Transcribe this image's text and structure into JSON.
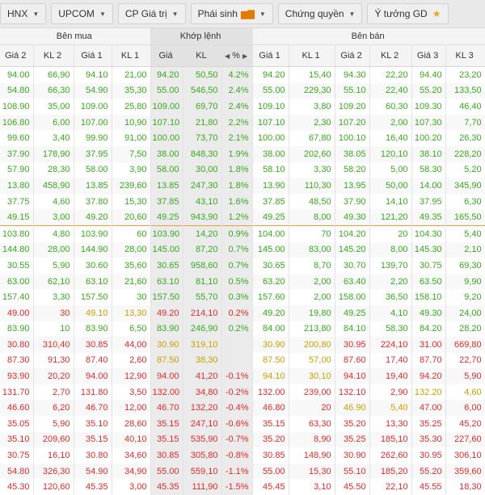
{
  "tabs": [
    {
      "label": "HNX",
      "caret": true
    },
    {
      "label": "UPCOM",
      "caret": true
    },
    {
      "label": "CP Giá trị",
      "caret": true
    },
    {
      "label": "Phái sinh",
      "caret": true,
      "chart_icon": true
    },
    {
      "label": "Chứng quyền",
      "caret": true
    },
    {
      "label": "Ý tưởng GD",
      "star": true
    }
  ],
  "groups": {
    "buy": "Bên mua",
    "match": "Khớp lệnh",
    "sell": "Bên bán"
  },
  "columns": [
    "Giá 2",
    "KL 2",
    "Giá 1",
    "KL 1",
    "Giá",
    "KL",
    "%",
    "Giá 1",
    "KL 1",
    "Giá 2",
    "KL 2",
    "Giá 3",
    "KL 3"
  ],
  "colors": {
    "green": "#3aa81f",
    "red": "#e02a2a",
    "yellow": "#c9a000",
    "grey": "#222222"
  },
  "rows": [
    {
      "c": "g",
      "v": [
        "94.00",
        "66,90",
        "94.10",
        "21,00",
        "94.20",
        "50,50",
        "4.2%",
        "94.20",
        "15,40",
        "94.30",
        "22,20",
        "94.40",
        "23,20"
      ]
    },
    {
      "c": "g",
      "v": [
        "54.80",
        "66,30",
        "54.90",
        "35,30",
        "55.00",
        "546,50",
        "2.4%",
        "55.00",
        "229,30",
        "55.10",
        "22,40",
        "55.20",
        "133,50"
      ]
    },
    {
      "c": "g",
      "v": [
        "108.90",
        "35,00",
        "109.00",
        "25,80",
        "109.00",
        "69,70",
        "2.4%",
        "109.10",
        "3,80",
        "109.20",
        "60,30",
        "109.30",
        "46,40"
      ]
    },
    {
      "c": "g",
      "v": [
        "106.80",
        "6,00",
        "107.00",
        "10,90",
        "107.10",
        "21,80",
        "2.2%",
        "107.10",
        "2,30",
        "107.20",
        "2,00",
        "107.30",
        "7,70"
      ]
    },
    {
      "c": "g",
      "v": [
        "99.60",
        "3,40",
        "99.90",
        "91,00",
        "100.00",
        "73,70",
        "2.1%",
        "100.00",
        "67,80",
        "100.10",
        "16,40",
        "100.20",
        "26,30"
      ]
    },
    {
      "c": "g",
      "v": [
        "37.90",
        "178,90",
        "37.95",
        "7,50",
        "38.00",
        "848,30",
        "1.9%",
        "38.00",
        "202,60",
        "38.05",
        "120,10",
        "38.10",
        "228,20"
      ]
    },
    {
      "c": "g",
      "v": [
        "57.90",
        "28,30",
        "58.00",
        "3,90",
        "58.00",
        "30,00",
        "1.8%",
        "58.10",
        "3,30",
        "58.20",
        "5,00",
        "58.30",
        "5,20"
      ]
    },
    {
      "c": "g",
      "v": [
        "13.80",
        "458,90",
        "13.85",
        "239,60",
        "13.85",
        "247,30",
        "1.8%",
        "13.90",
        "110,30",
        "13.95",
        "50,00",
        "14.00",
        "345,90"
      ]
    },
    {
      "c": "g",
      "v": [
        "37.75",
        "4,60",
        "37.80",
        "15,30",
        "37.85",
        "43,10",
        "1.6%",
        "37.85",
        "48,50",
        "37.90",
        "14,10",
        "37.95",
        "6,30"
      ]
    },
    {
      "c": "g",
      "v": [
        "49.15",
        "3,00",
        "49.20",
        "20,60",
        "49.25",
        "943,90",
        "1.2%",
        "49.25",
        "8,00",
        "49.30",
        "121,20",
        "49.35",
        "165,50"
      ]
    },
    {
      "c": "g",
      "sep": true,
      "v": [
        "103.80",
        "4,80",
        "103.90",
        "60",
        "103.90",
        "14,20",
        "0.9%",
        "104.00",
        "70",
        "104.20",
        "20",
        "104.30",
        "5,40"
      ]
    },
    {
      "c": "g",
      "v": [
        "144.80",
        "28,00",
        "144.90",
        "28,00",
        "145.00",
        "87,20",
        "0.7%",
        "145.00",
        "83,00",
        "145.20",
        "8,00",
        "145.30",
        "2,10"
      ]
    },
    {
      "c": "g",
      "v": [
        "30.55",
        "5,90",
        "30.60",
        "35,60",
        "30.65",
        "958,60",
        "0.7%",
        "30.65",
        "8,70",
        "30.70",
        "139,70",
        "30.75",
        "69,30"
      ]
    },
    {
      "c": "g",
      "v": [
        "63.00",
        "62,10",
        "63.10",
        "21,60",
        "63.10",
        "81,10",
        "0.5%",
        "63.20",
        "2,00",
        "63.40",
        "2,20",
        "63.50",
        "9,90"
      ]
    },
    {
      "c": "g",
      "v": [
        "157.40",
        "3,30",
        "157.50",
        "30",
        "157.50",
        "55,70",
        "0.3%",
        "157.60",
        "2,00",
        "158.00",
        "36,50",
        "158.10",
        "9,20"
      ]
    },
    {
      "c": "r",
      "cells": {
        "2": "y",
        "3": "y",
        "7": "g",
        "8": "g",
        "9": "g",
        "10": "g",
        "11": "g",
        "12": "g"
      },
      "v": [
        "49.00",
        "30",
        "49.10",
        "13,30",
        "49.20",
        "214,10",
        "0.2%",
        "49.20",
        "19,80",
        "49.25",
        "4,10",
        "49.30",
        "24,00"
      ]
    },
    {
      "c": "g",
      "v": [
        "83.90",
        "10",
        "83.90",
        "6,50",
        "83.90",
        "246,90",
        "0.2%",
        "84.00",
        "213,80",
        "84.10",
        "58,30",
        "84.20",
        "28,20"
      ]
    },
    {
      "c": "r",
      "cells": {
        "4": "y",
        "5": "y",
        "7": "y",
        "8": "y"
      },
      "v": [
        "30.80",
        "310,40",
        "30.85",
        "44,00",
        "30.90",
        "319,10",
        "",
        "30.90",
        "200,80",
        "30.95",
        "224,10",
        "31.00",
        "669,80"
      ]
    },
    {
      "c": "r",
      "cells": {
        "4": "y",
        "5": "y",
        "7": "y",
        "8": "y"
      },
      "v": [
        "87.30",
        "91,30",
        "87.40",
        "2,60",
        "87.50",
        "38,30",
        "",
        "87.50",
        "57,00",
        "87.60",
        "17,40",
        "87.70",
        "22,70"
      ]
    },
    {
      "c": "r",
      "cells": {
        "7": "y",
        "8": "y"
      },
      "v": [
        "93.90",
        "20,20",
        "94.00",
        "12,90",
        "94.00",
        "41,20",
        "-0.1%",
        "94.10",
        "30,10",
        "94.10",
        "19,40",
        "94.20",
        "5,90"
      ]
    },
    {
      "c": "r",
      "cells": {
        "11": "y",
        "12": "y"
      },
      "v": [
        "131.70",
        "2,70",
        "131.80",
        "3,50",
        "132.00",
        "34,80",
        "-0.2%",
        "132.00",
        "239,00",
        "132.10",
        "2,90",
        "132.20",
        "4,60"
      ]
    },
    {
      "c": "r",
      "cells": {
        "9": "y",
        "10": "y"
      },
      "v": [
        "46.60",
        "6,20",
        "46.70",
        "12,00",
        "46.70",
        "132,20",
        "-0.4%",
        "46.80",
        "20",
        "46.90",
        "5,40",
        "47.00",
        "6,00"
      ]
    },
    {
      "c": "r",
      "v": [
        "35.05",
        "5,90",
        "35.10",
        "28,60",
        "35.15",
        "247,10",
        "-0.6%",
        "35.15",
        "63,30",
        "35.20",
        "13,30",
        "35.25",
        "45,20"
      ]
    },
    {
      "c": "r",
      "v": [
        "35.10",
        "209,60",
        "35.15",
        "40,10",
        "35.15",
        "535,90",
        "-0.7%",
        "35.20",
        "8,90",
        "35.25",
        "185,10",
        "35.30",
        "227,60"
      ]
    },
    {
      "c": "r",
      "v": [
        "30.75",
        "16,10",
        "30.80",
        "34,60",
        "30.85",
        "305,80",
        "-0.8%",
        "30.85",
        "148,90",
        "30.90",
        "262,60",
        "30.95",
        "306,10"
      ]
    },
    {
      "c": "r",
      "v": [
        "54.80",
        "326,30",
        "54.90",
        "34,90",
        "55.00",
        "559,10",
        "-1.1%",
        "55.00",
        "15,30",
        "55.10",
        "185,20",
        "55.20",
        "359,60"
      ]
    },
    {
      "c": "r",
      "v": [
        "45.30",
        "120,60",
        "45.35",
        "3,00",
        "45.35",
        "111,90",
        "-1.5%",
        "45.45",
        "3,10",
        "45.50",
        "22,10",
        "45.55",
        "18,30"
      ]
    }
  ]
}
